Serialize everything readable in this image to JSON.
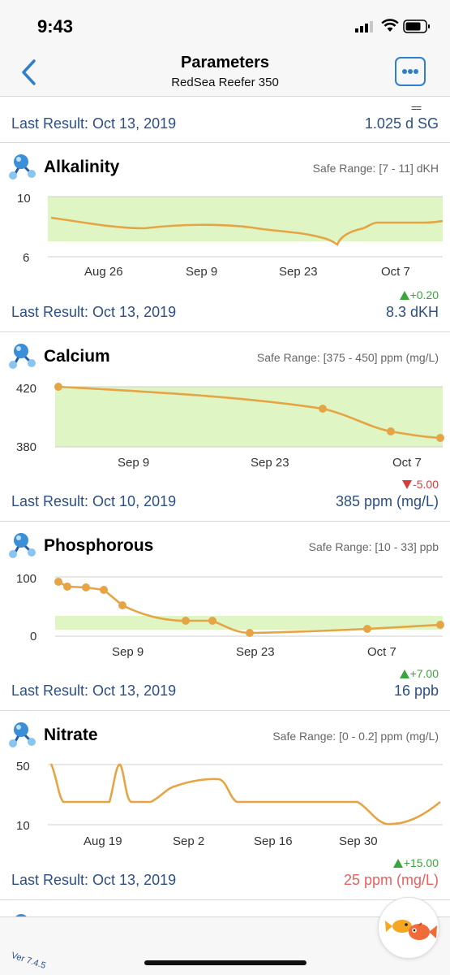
{
  "status": {
    "time": "9:43"
  },
  "nav": {
    "title": "Parameters",
    "subtitle": "RedSea Reefer 350",
    "back_icon": "chevron-left-icon",
    "more_icon": "ellipsis-icon"
  },
  "specific_gravity": {
    "top_glyph": "==",
    "last_result": "Last Result: Oct 13, 2019",
    "value": "1.025 d SG"
  },
  "alkalinity": {
    "name": "Alkalinity",
    "safe_range": "Safe Range: [7 - 11] dKH",
    "change": "+0.20",
    "last_result": "Last Result: Oct 13, 2019",
    "value": "8.3 dKH",
    "yticks": [
      "10",
      "6"
    ],
    "xticks": [
      "Aug 26",
      "Sep 9",
      "Sep 23",
      "Oct 7"
    ]
  },
  "calcium": {
    "name": "Calcium",
    "safe_range": "Safe Range: [375 - 450] ppm (mg/L)",
    "change": "-5.00",
    "last_result": "Last Result: Oct 10, 2019",
    "value": "385 ppm (mg/L)",
    "yticks": [
      "420",
      "380"
    ],
    "xticks": [
      "Sep 9",
      "Sep 23",
      "Oct 7"
    ]
  },
  "phosphorous": {
    "name": "Phosphorous",
    "safe_range": "Safe Range: [10 - 33] ppb",
    "change": "+7.00",
    "last_result": "Last Result: Oct 13, 2019",
    "value": "16 ppb",
    "yticks": [
      "100",
      "0"
    ],
    "xticks": [
      "Sep 9",
      "Sep 23",
      "Oct 7"
    ]
  },
  "nitrate": {
    "name": "Nitrate",
    "safe_range": "Safe Range: [0 - 0.2] ppm (mg/L)",
    "change": "+15.00",
    "last_result": "Last Result: Oct 13, 2019",
    "value": "25 ppm (mg/L)",
    "yticks": [
      "50",
      "10"
    ],
    "xticks": [
      "Aug 19",
      "Sep 2",
      "Sep 16",
      "Sep 30"
    ]
  },
  "footer": {
    "version": "Ver 7.4.5",
    "fab_icon": "fish-icon"
  },
  "colors": {
    "accent": "#2f80c8",
    "link_text": "#2c4f86",
    "line": "#e6a545",
    "safe_band": "#dff5c4",
    "up": "#3aa53a",
    "down": "#d93a3a",
    "warn_value": "#e86060"
  }
}
